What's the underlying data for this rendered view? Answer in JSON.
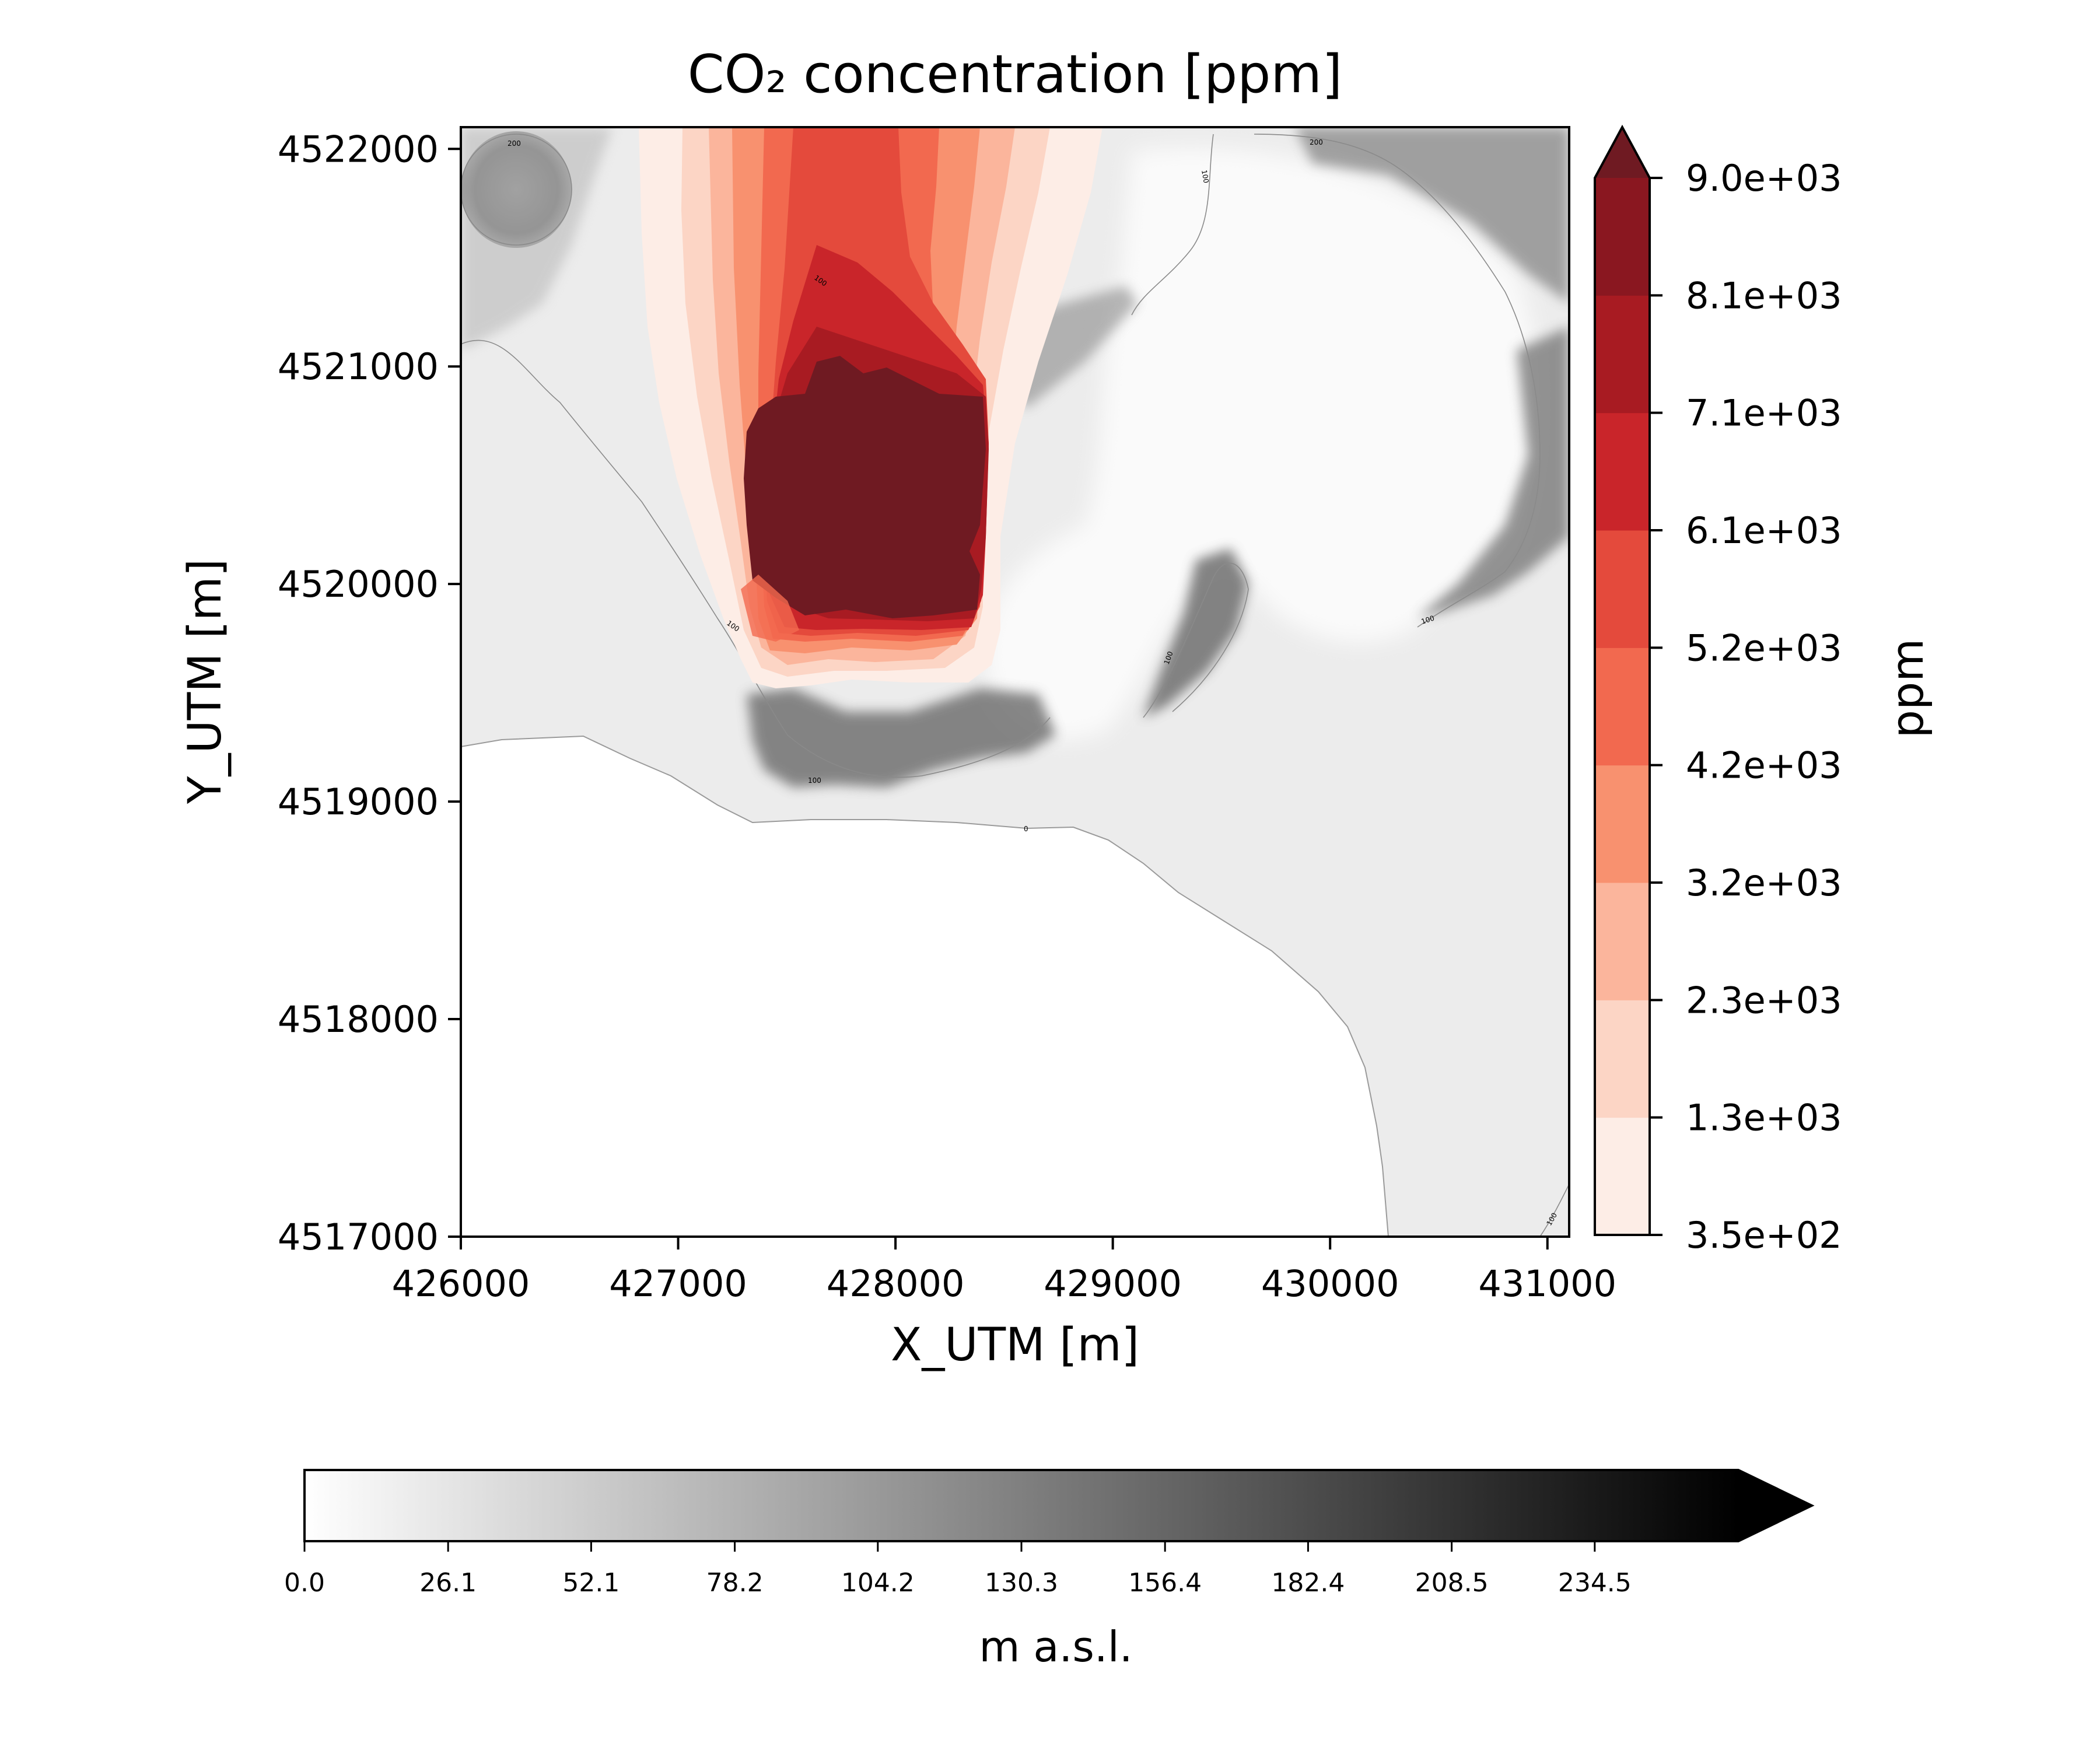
{
  "chart_data": [
    {
      "type": "heatmap",
      "title": "CO₂ concentration [ppm]",
      "xlabel": "X_UTM [m]",
      "ylabel": "Y_UTM [m]",
      "xlim": [
        426000,
        431100
      ],
      "ylim": [
        4517000,
        4522100
      ],
      "x_ticks": [
        "426000",
        "427000",
        "428000",
        "429000",
        "430000",
        "431000"
      ],
      "y_ticks": [
        "4522000",
        "4521000",
        "4520000",
        "4519000",
        "4518000",
        "4517000"
      ],
      "x_tick_values": [
        426000,
        427000,
        428000,
        429000,
        430000,
        431000
      ],
      "y_tick_values": [
        4522000,
        4521000,
        4520000,
        4519000,
        4518000,
        4517000
      ],
      "grid": false,
      "contour_labels": [
        "200",
        "100",
        "200",
        "100",
        "100",
        "100",
        "100",
        "100",
        "0",
        "100"
      ],
      "plume_core_region": {
        "x": [
          427200,
          428400
        ],
        "y": [
          4519800,
          4520900
        ]
      }
    },
    {
      "type": "colorbar",
      "label": "ppm",
      "orientation": "vertical",
      "extend": "max",
      "levels": [
        350,
        1300,
        2300,
        3200,
        4200,
        5200,
        6100,
        7100,
        8100,
        9000
      ],
      "tick_labels": [
        "3.5e+02",
        "1.3e+03",
        "2.3e+03",
        "3.2e+03",
        "4.2e+03",
        "5.2e+03",
        "6.1e+03",
        "7.1e+03",
        "8.1e+03",
        "9.0e+03"
      ],
      "colors": [
        "#fdede6",
        "#fcd5c5",
        "#fbb59c",
        "#f8916f",
        "#f2694f",
        "#e44a3c",
        "#c9252a",
        "#a81b22",
        "#8a1720",
        "#6f1a22"
      ]
    },
    {
      "type": "colorbar",
      "label": "m a.s.l.",
      "orientation": "horizontal",
      "extend": "max",
      "range": [
        0,
        260.6
      ],
      "tick_values": [
        0,
        26.1,
        52.1,
        78.2,
        104.2,
        130.3,
        156.4,
        182.4,
        208.5,
        234.5
      ],
      "tick_labels": [
        "0.0",
        "26.1",
        "52.1",
        "78.2",
        "104.2",
        "130.3",
        "156.4",
        "182.4",
        "208.5",
        "234.5"
      ],
      "colors": [
        "#ffffff",
        "#000000"
      ]
    }
  ]
}
